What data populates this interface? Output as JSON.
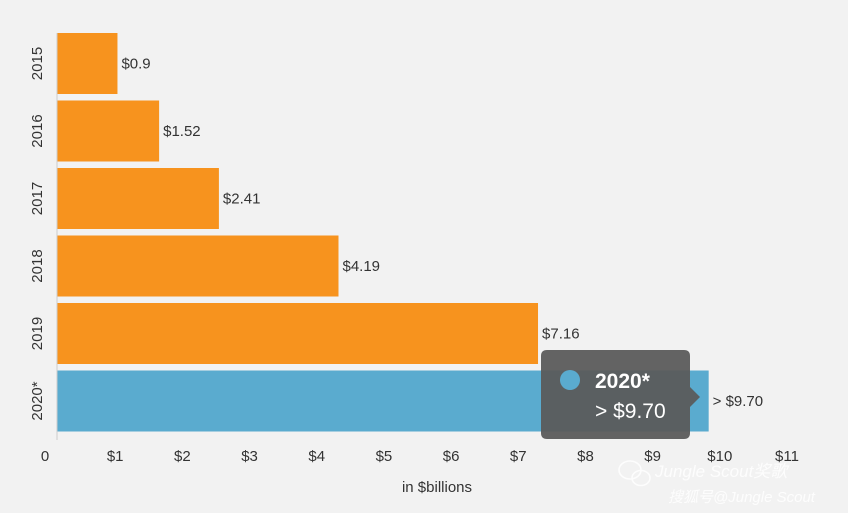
{
  "chart_data": {
    "type": "bar",
    "orientation": "horizontal",
    "categories": [
      "2015",
      "2016",
      "2017",
      "2018",
      "2019",
      "2020*"
    ],
    "values": [
      0.9,
      1.52,
      2.41,
      4.19,
      7.16,
      9.7
    ],
    "value_labels": [
      "$0.9",
      "$1.52",
      "$2.41",
      "$4.19",
      "$7.16",
      "> $9.70"
    ],
    "bar_colors": [
      "#f7931e",
      "#f7931e",
      "#f7931e",
      "#f7931e",
      "#f7931e",
      "#5aabcf"
    ],
    "x_ticks": [
      0,
      1,
      2,
      3,
      4,
      5,
      6,
      7,
      8,
      9,
      10,
      11
    ],
    "x_tick_labels": [
      "0",
      "$1",
      "$2",
      "$3",
      "$4",
      "$5",
      "$6",
      "$7",
      "$8",
      "$9",
      "$10",
      "$11"
    ],
    "xlabel": "in $billions",
    "ylabel": "",
    "xlim": [
      0,
      11
    ],
    "grid": false,
    "tooltip": {
      "title": "2020*",
      "value": "> $9.70",
      "marker_color": "#5aabcf"
    }
  },
  "watermark": {
    "line1": "Jungle Scout奖歌",
    "line2": "搜狐号@Jungle Scout"
  }
}
